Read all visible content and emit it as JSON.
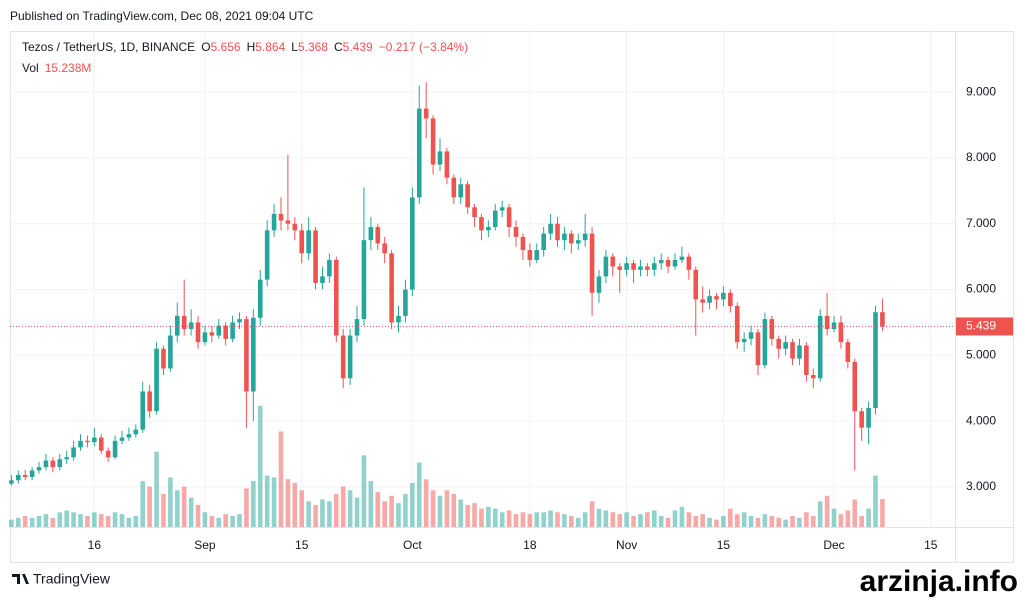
{
  "published": "Published on TradingView.com, Dec 08, 2021 09:04 UTC",
  "chart_data": {
    "type": "candlestick",
    "symbol": "Tezos / TetherUS, 1D, BINANCE",
    "ohlc_letters": [
      "O",
      "H",
      "L",
      "C"
    ],
    "change": "−0.217 (−3.84%)",
    "volume_label": "Vol",
    "volume_last_label": "15.238M",
    "open": [
      3.05,
      3.1,
      3.18,
      3.15,
      3.25,
      3.3,
      3.4,
      3.3,
      3.42,
      3.45,
      3.6,
      3.7,
      3.68,
      3.75,
      3.55,
      3.45,
      3.7,
      3.75,
      3.8,
      3.87,
      4.45,
      4.15,
      5.1,
      4.8,
      5.3,
      5.6,
      5.4,
      5.5,
      5.2,
      5.35,
      5.3,
      5.45,
      5.25,
      5.5,
      5.55,
      4.45,
      5.57,
      6.15,
      6.9,
      7.15,
      7.05,
      7.0,
      6.9,
      6.55,
      6.9,
      6.1,
      6.2,
      6.45,
      5.3,
      4.65,
      5.3,
      5.55,
      6.75,
      6.95,
      6.7,
      6.55,
      5.5,
      5.6,
      6.0,
      7.4,
      8.75,
      8.6,
      7.9,
      8.1,
      7.7,
      7.4,
      7.6,
      7.25,
      7.1,
      6.9,
      6.95,
      7.2,
      7.25,
      6.95,
      6.8,
      6.6,
      6.45,
      6.6,
      6.85,
      7.0,
      6.75,
      6.85,
      6.7,
      6.75,
      6.85,
      5.95,
      6.2,
      6.5,
      6.35,
      6.3,
      6.4,
      6.3,
      6.35,
      6.3,
      6.4,
      6.45,
      6.35,
      6.45,
      6.5,
      6.3,
      5.85,
      5.8,
      5.9,
      5.85,
      5.95,
      5.75,
      5.2,
      5.25,
      5.35,
      4.85,
      5.55,
      5.25,
      5.1,
      5.2,
      4.95,
      5.15,
      4.7,
      4.65,
      5.6,
      5.4,
      5.5,
      5.2,
      4.9,
      4.15,
      3.9,
      4.2,
      5.656
    ],
    "high": [
      3.18,
      3.25,
      3.26,
      3.3,
      3.38,
      3.5,
      3.45,
      3.5,
      3.55,
      3.7,
      3.8,
      3.78,
      3.9,
      3.8,
      3.6,
      3.78,
      3.85,
      3.9,
      3.95,
      4.6,
      4.55,
      5.2,
      5.15,
      5.45,
      5.8,
      6.15,
      5.7,
      5.6,
      5.45,
      5.45,
      5.55,
      5.5,
      5.6,
      5.65,
      5.6,
      5.7,
      6.3,
      7.05,
      7.3,
      7.4,
      8.05,
      7.1,
      7.0,
      7.1,
      6.95,
      6.35,
      6.55,
      6.5,
      5.4,
      5.4,
      5.75,
      7.55,
      7.1,
      7.0,
      6.8,
      6.6,
      5.75,
      6.15,
      7.55,
      9.1,
      9.15,
      8.65,
      8.3,
      8.15,
      7.75,
      7.7,
      7.65,
      7.3,
      7.15,
      7.05,
      7.3,
      7.35,
      7.3,
      7.05,
      6.85,
      6.7,
      6.7,
      6.95,
      7.15,
      7.1,
      6.95,
      6.9,
      6.85,
      7.15,
      6.95,
      6.3,
      6.6,
      6.55,
      6.4,
      6.5,
      6.45,
      6.45,
      6.4,
      6.5,
      6.55,
      6.5,
      6.55,
      6.65,
      6.55,
      6.35,
      6.05,
      6.0,
      5.95,
      6.05,
      6.0,
      5.8,
      5.35,
      5.45,
      5.4,
      5.65,
      5.6,
      5.3,
      5.3,
      5.25,
      5.25,
      5.2,
      4.8,
      5.7,
      5.95,
      5.6,
      5.6,
      5.25,
      4.95,
      4.2,
      4.3,
      5.75,
      5.864
    ],
    "low": [
      3.02,
      3.05,
      3.1,
      3.1,
      3.2,
      3.25,
      3.22,
      3.25,
      3.35,
      3.4,
      3.55,
      3.6,
      3.62,
      3.5,
      3.38,
      3.42,
      3.65,
      3.7,
      3.75,
      3.82,
      4.05,
      4.1,
      4.7,
      4.75,
      5.2,
      5.3,
      5.3,
      5.1,
      5.15,
      5.2,
      5.25,
      5.15,
      5.2,
      5.4,
      3.9,
      4.0,
      5.45,
      6.05,
      6.8,
      6.9,
      6.9,
      6.75,
      6.4,
      6.45,
      6.0,
      6.0,
      6.1,
      5.2,
      4.5,
      4.55,
      5.2,
      5.45,
      6.6,
      6.6,
      6.4,
      5.4,
      5.35,
      5.5,
      5.9,
      7.3,
      8.3,
      7.75,
      7.8,
      7.6,
      7.3,
      7.3,
      7.15,
      6.95,
      6.75,
      6.8,
      6.9,
      7.1,
      6.8,
      6.65,
      6.45,
      6.35,
      6.4,
      6.5,
      6.75,
      6.65,
      6.6,
      6.55,
      6.6,
      6.65,
      5.6,
      5.8,
      6.1,
      6.2,
      5.95,
      6.2,
      6.1,
      6.2,
      6.2,
      6.2,
      6.3,
      6.25,
      6.3,
      6.4,
      6.15,
      5.3,
      5.65,
      5.7,
      5.7,
      5.75,
      5.65,
      5.1,
      5.05,
      5.15,
      4.7,
      4.8,
      5.15,
      4.95,
      5.0,
      4.85,
      4.85,
      4.6,
      4.5,
      4.6,
      5.3,
      5.35,
      5.1,
      4.8,
      3.25,
      3.7,
      3.65,
      4.1,
      5.368
    ],
    "close": [
      3.1,
      3.18,
      3.15,
      3.25,
      3.3,
      3.4,
      3.3,
      3.42,
      3.45,
      3.6,
      3.7,
      3.68,
      3.75,
      3.55,
      3.45,
      3.7,
      3.75,
      3.8,
      3.87,
      4.45,
      4.15,
      5.1,
      4.8,
      5.3,
      5.6,
      5.4,
      5.5,
      5.2,
      5.35,
      5.3,
      5.45,
      5.25,
      5.5,
      5.55,
      4.45,
      5.57,
      6.15,
      6.9,
      7.15,
      7.05,
      7.0,
      6.9,
      6.55,
      6.9,
      6.1,
      6.2,
      6.45,
      5.3,
      4.65,
      5.3,
      5.55,
      6.75,
      6.95,
      6.7,
      6.55,
      5.5,
      5.6,
      6.0,
      7.4,
      8.75,
      8.6,
      7.9,
      8.1,
      7.7,
      7.4,
      7.6,
      7.25,
      7.1,
      6.9,
      6.95,
      7.2,
      7.25,
      6.95,
      6.8,
      6.6,
      6.45,
      6.6,
      6.85,
      7.0,
      6.75,
      6.85,
      6.7,
      6.75,
      6.85,
      5.95,
      6.2,
      6.5,
      6.35,
      6.3,
      6.4,
      6.3,
      6.35,
      6.3,
      6.4,
      6.45,
      6.35,
      6.45,
      6.5,
      6.3,
      5.85,
      5.8,
      5.9,
      5.85,
      5.95,
      5.75,
      5.2,
      5.25,
      5.35,
      4.85,
      5.55,
      5.25,
      5.1,
      5.2,
      4.95,
      5.15,
      4.7,
      4.65,
      5.6,
      5.4,
      5.5,
      5.2,
      4.9,
      4.15,
      3.9,
      4.2,
      5.656,
      5.439
    ],
    "volume": [
      4,
      5,
      6,
      5,
      6,
      7,
      5,
      8,
      9,
      8,
      7,
      6,
      8,
      7,
      6,
      8,
      7,
      5,
      6,
      25,
      22,
      41,
      18,
      27,
      20,
      22,
      16,
      12,
      8,
      6,
      5,
      7,
      6,
      7,
      21,
      25,
      66,
      28,
      27,
      52,
      26,
      24,
      20,
      14,
      12,
      15,
      14,
      18,
      22,
      20,
      16,
      39,
      25,
      19,
      14,
      17,
      13,
      18,
      24,
      35,
      26,
      20,
      17,
      20,
      18,
      15,
      12,
      13,
      10,
      11,
      10,
      8,
      9,
      7,
      8,
      7,
      8,
      8,
      9,
      8,
      7,
      6,
      5,
      8,
      14,
      10,
      9,
      8,
      7,
      8,
      6,
      7,
      8,
      9,
      6,
      5,
      9,
      11,
      8,
      6,
      7,
      5,
      4,
      6,
      10,
      7,
      8,
      6,
      5,
      7,
      6,
      5,
      4,
      6,
      5,
      8,
      6,
      14,
      17,
      10,
      7,
      9,
      15,
      6,
      10,
      28,
      15.238
    ],
    "xlim": [
      -0.2,
      136.5
    ],
    "xticks": [
      {
        "value": 12,
        "label": "16"
      },
      {
        "value": 28,
        "label": "Sep"
      },
      {
        "value": 42,
        "label": "15"
      },
      {
        "value": 58,
        "label": "Oct"
      },
      {
        "value": 75,
        "label": "18"
      },
      {
        "value": 89,
        "label": "Nov"
      },
      {
        "value": 103,
        "label": "15"
      },
      {
        "value": 119,
        "label": "Dec"
      },
      {
        "value": 133,
        "label": "15"
      }
    ],
    "ylim": [
      2.39,
      9.93
    ],
    "yticks": [
      {
        "value": 3,
        "label": "3.000"
      },
      {
        "value": 4,
        "label": "4.000"
      },
      {
        "value": 5,
        "label": "5.000"
      },
      {
        "value": 6,
        "label": "6.000"
      },
      {
        "value": 7,
        "label": "7.000"
      },
      {
        "value": 8,
        "label": "8.000"
      },
      {
        "value": 9,
        "label": "9.000"
      }
    ],
    "vlim": [
      0,
      270
    ],
    "up_color": "#26a69a",
    "down_color": "#ef5350",
    "grid": true
  },
  "footer": {
    "brand": "TradingView",
    "watermark": "arzinja.info"
  }
}
